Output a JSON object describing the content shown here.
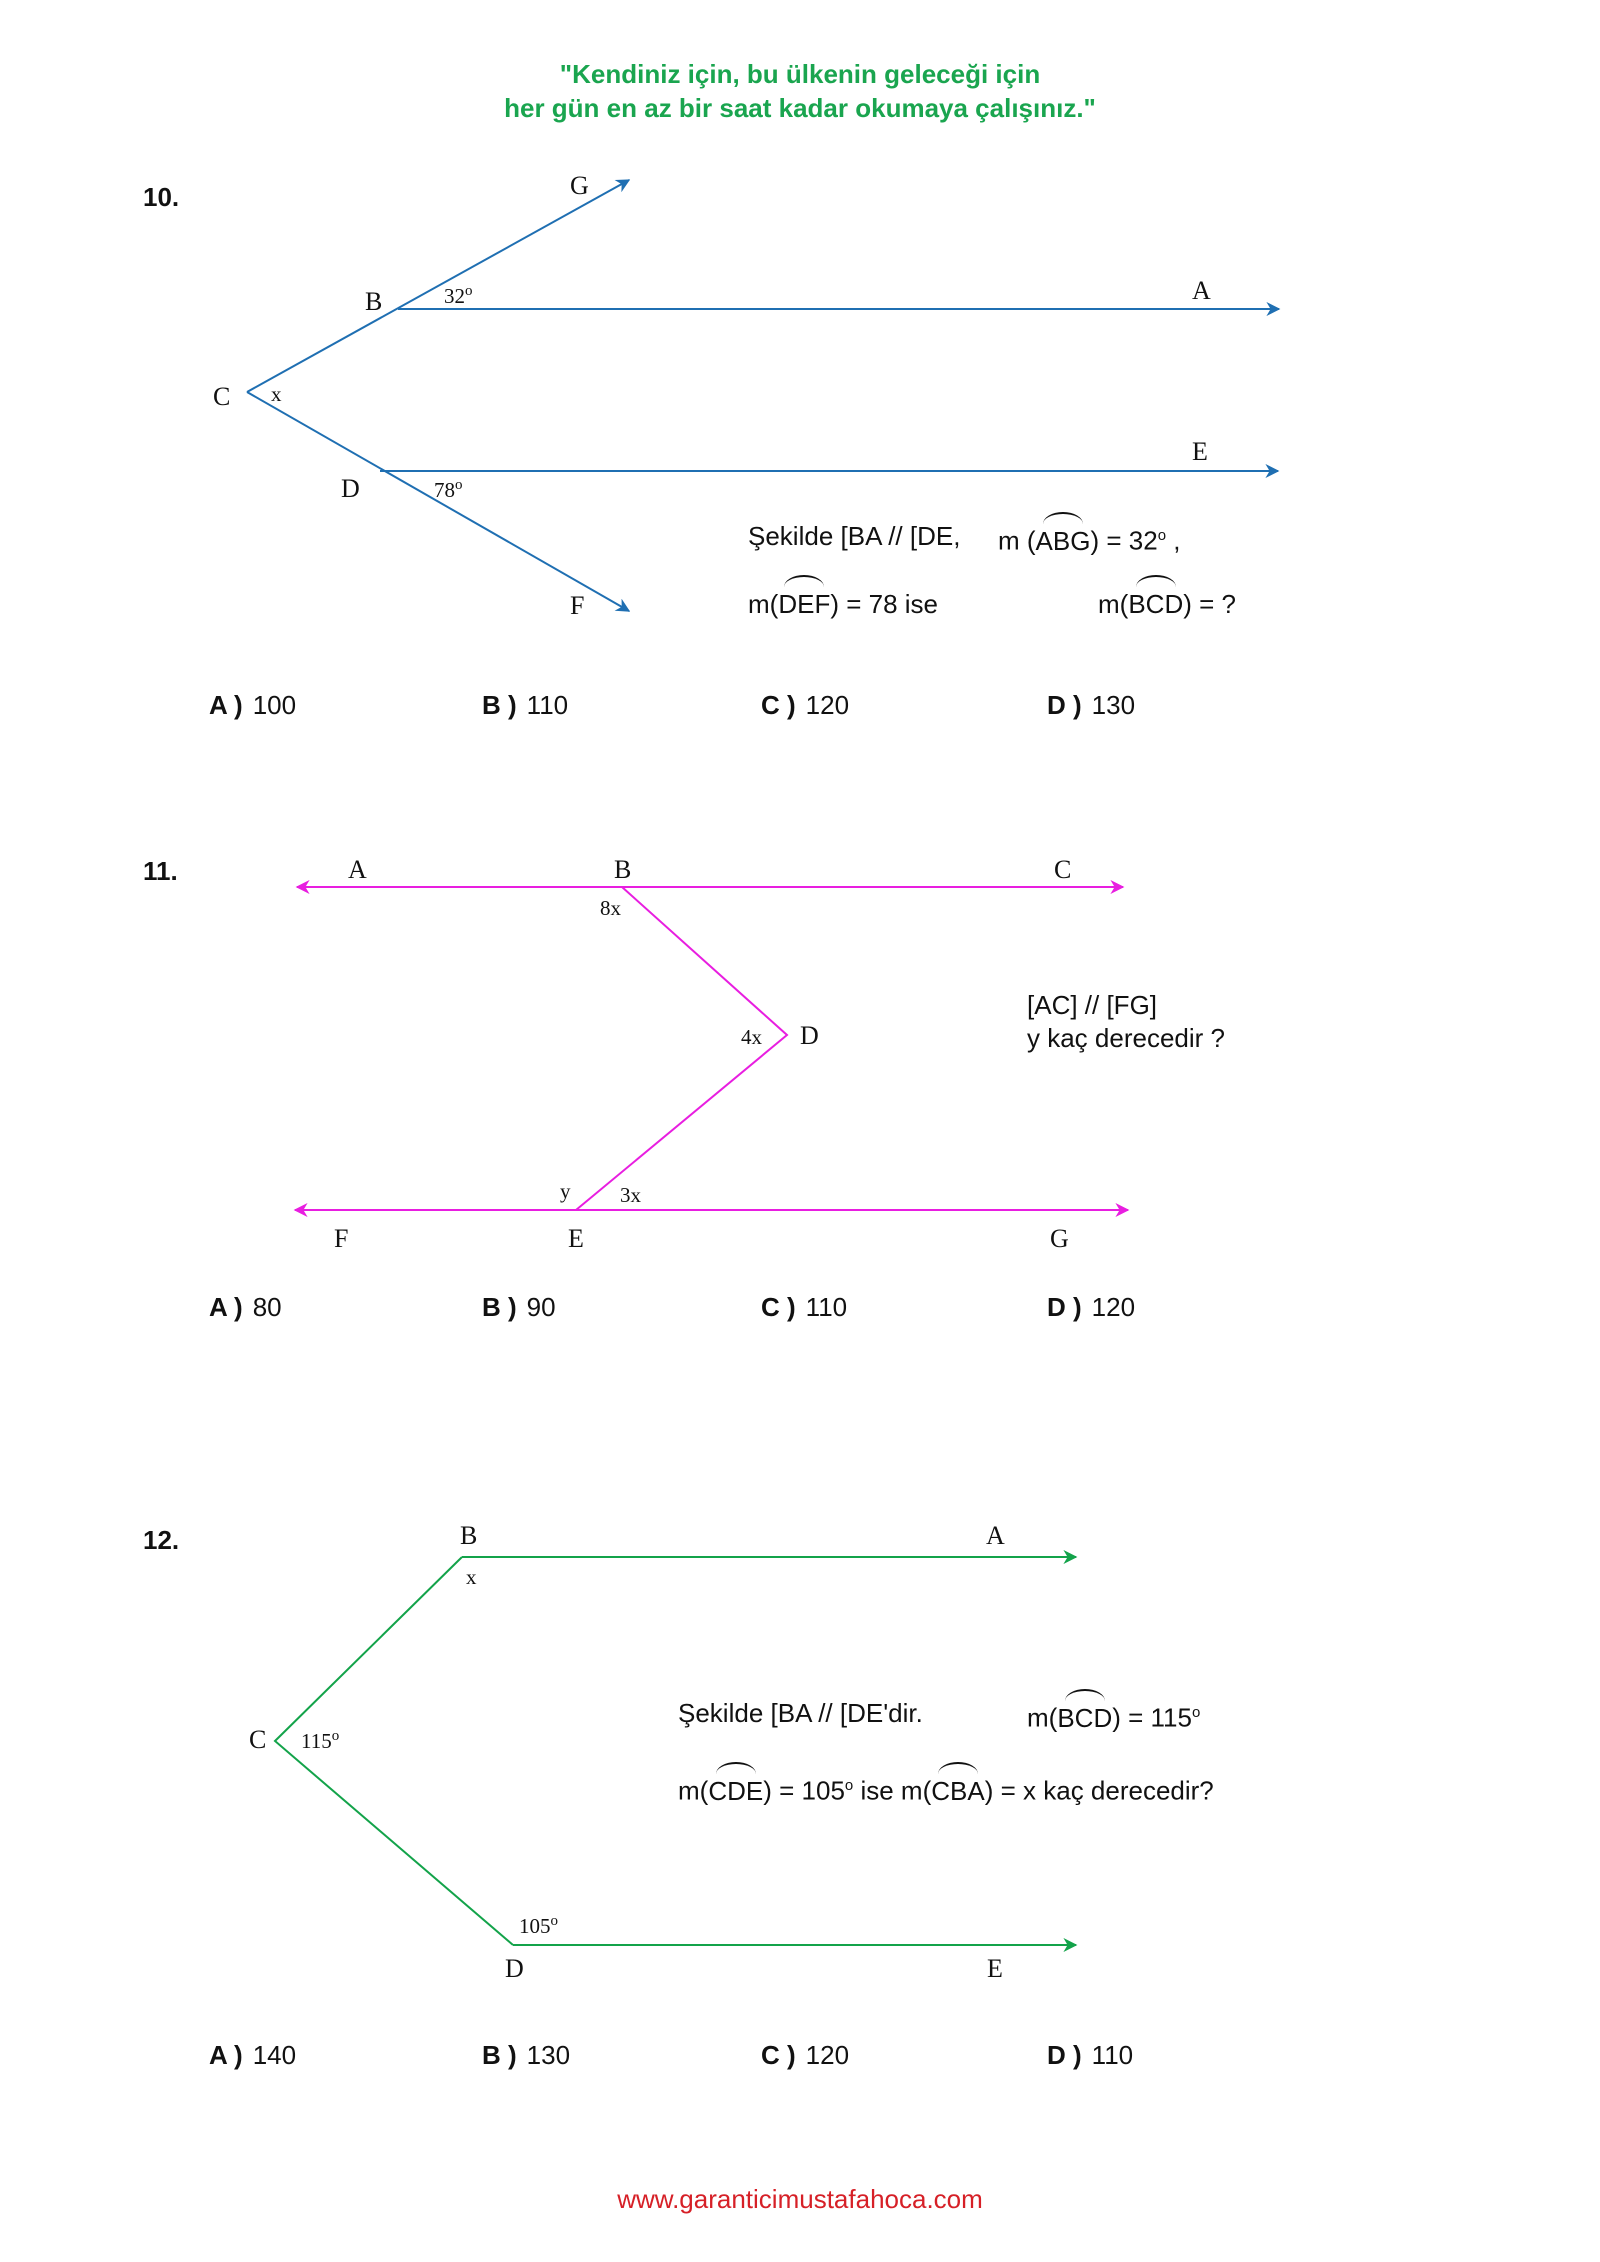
{
  "header": {
    "motto_line1": "\"Kendiniz için, bu ülkenin geleceği için",
    "motto_line2": "her gün en az bir saat kadar okumaya çalışınız.\""
  },
  "questions": [
    {
      "number": "10.",
      "color": "#1f6fb2",
      "points": {
        "G": "G",
        "B": "B",
        "A": "A",
        "C": "C",
        "E": "E",
        "D": "D",
        "F": "F"
      },
      "angles": {
        "abg": "32",
        "x": "x",
        "def": "78",
        "deg": "o"
      },
      "statement": {
        "l1a": "Şekilde [BA // [DE,",
        "l1b_pre": "m (",
        "l1b_arc": "ABG",
        "l1b_post": ") = 32",
        "l1b_sup": "o",
        "l1b_end": " ,",
        "l2a_pre": "m(",
        "l2a_arc": "DEF",
        "l2a_post": ") = 78  ise",
        "l2b_pre": "m(",
        "l2b_arc": "BCD",
        "l2b_post": ") = ?"
      },
      "options": [
        {
          "letter": "A )",
          "value": "100"
        },
        {
          "letter": "B )",
          "value": "110"
        },
        {
          "letter": "C )",
          "value": "120"
        },
        {
          "letter": "D )",
          "value": "130"
        }
      ]
    },
    {
      "number": "11.",
      "color": "#e81ee0",
      "points": {
        "A": "A",
        "B": "B",
        "C": "C",
        "D": "D",
        "F": "F",
        "E": "E",
        "G": "G"
      },
      "angles": {
        "b": "8x",
        "d": "4x",
        "y": "y",
        "e": "3x"
      },
      "statement": {
        "l1": "[AC] // [FG]",
        "l2": "y kaç derecedir ?"
      },
      "options": [
        {
          "letter": "A )",
          "value": "80"
        },
        {
          "letter": "B )",
          "value": "90"
        },
        {
          "letter": "C )",
          "value": "110"
        },
        {
          "letter": "D )",
          "value": "120"
        }
      ]
    },
    {
      "number": "12.",
      "color": "#13a34a",
      "points": {
        "B": "B",
        "A": "A",
        "C": "C",
        "D": "D",
        "E": "E"
      },
      "angles": {
        "x": "x",
        "c": "115",
        "d": "105",
        "deg": "o"
      },
      "statement": {
        "l1a": "Şekilde [BA // [DE'dir.",
        "l1b_pre": "m(",
        "l1b_arc": "BCD",
        "l1b_post": ") = 115",
        "l1b_sup": "o",
        "l2_pre": "m(",
        "l2_arc1": "CDE",
        "l2_mid": ") = 105",
        "l2_sup": "o",
        "l2_mid2": " ise m(",
        "l2_arc2": "CBA",
        "l2_end": ") = x kaç derecedir?"
      },
      "options": [
        {
          "letter": "A )",
          "value": "140"
        },
        {
          "letter": "B )",
          "value": "130"
        },
        {
          "letter": "C )",
          "value": "120"
        },
        {
          "letter": "D )",
          "value": "110"
        }
      ]
    }
  ],
  "footer": {
    "url": "www.garanticimustafahoca.com"
  }
}
